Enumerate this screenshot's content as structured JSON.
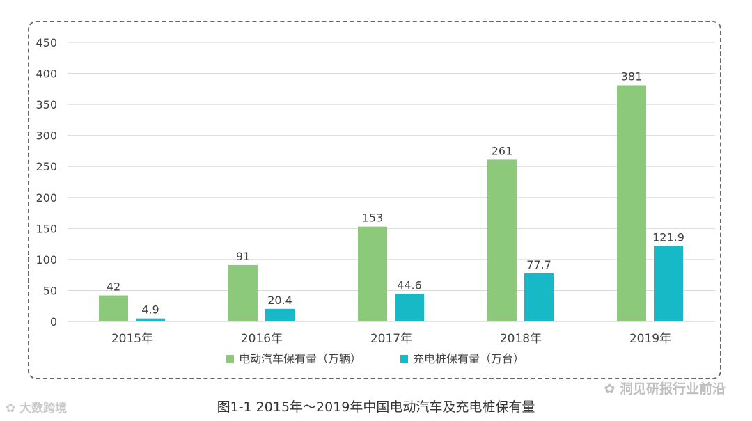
{
  "chart_data": {
    "type": "bar",
    "categories": [
      "2015年",
      "2016年",
      "2017年",
      "2018年",
      "2019年"
    ],
    "series": [
      {
        "name": "电动汽车保有量（万辆）",
        "values": [
          42,
          91,
          153,
          261,
          381
        ],
        "labels": [
          "42",
          "91",
          "153",
          "261",
          "381"
        ],
        "color": "#8cc97a"
      },
      {
        "name": "充电桩保有量（万台）",
        "values": [
          4.9,
          20.4,
          44.6,
          77.7,
          121.9
        ],
        "labels": [
          "4.9",
          "20.4",
          "44.6",
          "77.7",
          "121.9"
        ],
        "color": "#17b9c6"
      }
    ],
    "ylim": [
      0,
      450
    ],
    "yticks": [
      0,
      50,
      100,
      150,
      200,
      250,
      300,
      350,
      400,
      450
    ],
    "grid": true,
    "legend_position": "bottom"
  },
  "caption": "图1-1 2015年～2019年中国电动汽车及充电桩保有量",
  "watermark_left": "大数跨境",
  "watermark_right": "洞见研报行业前沿"
}
